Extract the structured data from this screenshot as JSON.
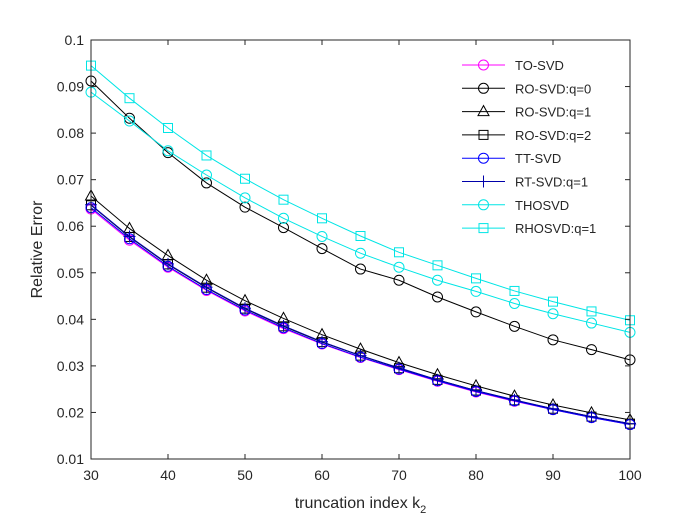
{
  "chart_data": {
    "type": "line",
    "title": "",
    "xlabel": "truncation index k",
    "xlabel_subscript": "2",
    "ylabel": "Relative Error",
    "xlim": [
      30,
      100
    ],
    "ylim": [
      0.01,
      0.1
    ],
    "xticks": [
      30,
      40,
      50,
      60,
      70,
      80,
      90,
      100
    ],
    "yticks": [
      0.01,
      0.02,
      0.03,
      0.04,
      0.05,
      0.06,
      0.07,
      0.08,
      0.09,
      0.1
    ],
    "ytick_labels": [
      "0.01",
      "0.02",
      "0.03",
      "0.04",
      "0.05",
      "0.06",
      "0.07",
      "0.08",
      "0.09",
      "0.1"
    ],
    "grid": false,
    "legend_position": "top-right",
    "x": [
      30,
      35,
      40,
      45,
      50,
      55,
      60,
      65,
      70,
      75,
      80,
      85,
      90,
      95,
      100
    ],
    "series": [
      {
        "name": "TO-SVD",
        "color": "#ff00ff",
        "marker": "circle",
        "values": [
          0.0637,
          0.057,
          0.0512,
          0.0462,
          0.0418,
          0.038,
          0.0347,
          0.0318,
          0.0292,
          0.0267,
          0.0244,
          0.0224,
          0.0206,
          0.0189,
          0.0174
        ]
      },
      {
        "name": "RO-SVD:q=0",
        "color": "#000000",
        "marker": "circle",
        "values": [
          0.0912,
          0.0832,
          0.0758,
          0.0693,
          0.0641,
          0.0597,
          0.0552,
          0.0508,
          0.0484,
          0.0448,
          0.0416,
          0.0385,
          0.0356,
          0.0335,
          0.0313
        ]
      },
      {
        "name": "RO-SVD:q=1",
        "color": "#000000",
        "marker": "triangle",
        "values": [
          0.0665,
          0.0595,
          0.0537,
          0.0484,
          0.044,
          0.0402,
          0.0367,
          0.0336,
          0.0307,
          0.0281,
          0.0257,
          0.0235,
          0.0216,
          0.0199,
          0.0184
        ]
      },
      {
        "name": "RO-SVD:q=2",
        "color": "#000000",
        "marker": "square",
        "values": [
          0.0645,
          0.0577,
          0.0518,
          0.0468,
          0.0423,
          0.0385,
          0.0351,
          0.0322,
          0.0295,
          0.027,
          0.0247,
          0.0226,
          0.0208,
          0.0191,
          0.0176
        ]
      },
      {
        "name": "TT-SVD",
        "color": "#0000ff",
        "marker": "circle",
        "values": [
          0.064,
          0.0573,
          0.0514,
          0.0464,
          0.042,
          0.0382,
          0.0348,
          0.0319,
          0.0293,
          0.0268,
          0.0245,
          0.0225,
          0.0206,
          0.0189,
          0.0174
        ]
      },
      {
        "name": "RT-SVD:q=1",
        "color": "#0000aa",
        "marker": "plus",
        "values": [
          0.0646,
          0.0578,
          0.0519,
          0.0469,
          0.0424,
          0.0386,
          0.0352,
          0.0322,
          0.0296,
          0.027,
          0.0247,
          0.0227,
          0.0208,
          0.0191,
          0.0176
        ]
      },
      {
        "name": "THOSVD",
        "color": "#00e5e5",
        "marker": "circle",
        "values": [
          0.0888,
          0.0826,
          0.0762,
          0.071,
          0.0661,
          0.0617,
          0.0578,
          0.0542,
          0.0512,
          0.0484,
          0.046,
          0.0434,
          0.0412,
          0.0392,
          0.0372
        ]
      },
      {
        "name": "RHOSVD:q=1",
        "color": "#00e5e5",
        "marker": "square",
        "values": [
          0.0945,
          0.0875,
          0.0811,
          0.0752,
          0.0702,
          0.0657,
          0.0617,
          0.0579,
          0.0544,
          0.0516,
          0.0488,
          0.0461,
          0.0438,
          0.0417,
          0.0398
        ]
      }
    ]
  }
}
